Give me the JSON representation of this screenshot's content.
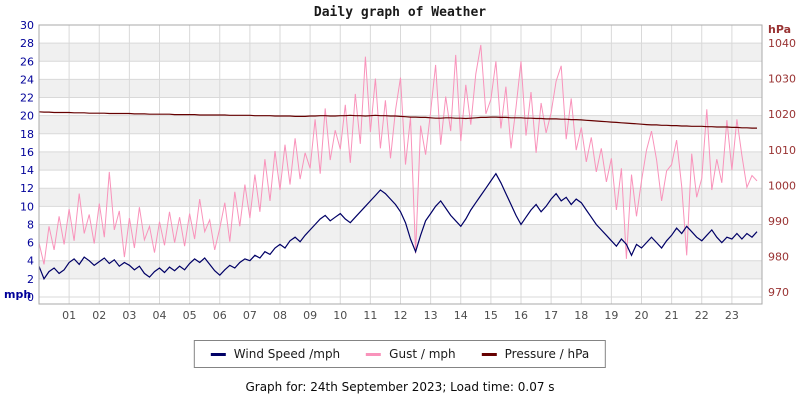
{
  "chart": {
    "title": "Daily graph of Weather",
    "left_axis": {
      "unit": "mph",
      "color": "#000099",
      "ticks": [
        30,
        28,
        26,
        24,
        22,
        20,
        18,
        16,
        14,
        12,
        10,
        8,
        6,
        4,
        2,
        0
      ]
    },
    "right_axis": {
      "unit": "hPa",
      "color": "#993333",
      "ticks": [
        1040,
        1030,
        1020,
        1010,
        1000,
        990,
        980,
        970
      ]
    },
    "x_axis": {
      "color": "#4d4d4d",
      "tick_labels": [
        "01",
        "02",
        "03",
        "04",
        "05",
        "06",
        "07",
        "08",
        "09",
        "10",
        "11",
        "12",
        "13",
        "14",
        "15",
        "16",
        "17",
        "18",
        "19",
        "20",
        "21",
        "22",
        "23"
      ]
    }
  },
  "chart_data": {
    "type": "line",
    "title": "Daily graph of Weather",
    "x_unit": "hour of day",
    "x_range": [
      0,
      24
    ],
    "interval_minutes": 10,
    "left_ylim": [
      0,
      30
    ],
    "right_ylim": [
      970,
      1040
    ],
    "right_axis_plot_range": [
      968.6,
      1045.1
    ],
    "grid": "on",
    "band_fill_alternate": [
      "#ffffff",
      "#f0f0f0"
    ],
    "gridline_color": "#d9d9d9",
    "border_color": "#aaaaaa",
    "legend_position": "bottom",
    "series": [
      {
        "name": "Wind Speed /mph",
        "axis": "left",
        "color": "#000066",
        "values": [
          3.4,
          2.0,
          2.8,
          3.2,
          2.6,
          3.0,
          3.8,
          4.2,
          3.6,
          4.4,
          4.0,
          3.5,
          3.9,
          4.3,
          3.7,
          4.1,
          3.4,
          3.8,
          3.5,
          3.0,
          3.4,
          2.6,
          2.2,
          2.8,
          3.2,
          2.7,
          3.3,
          2.9,
          3.4,
          3.0,
          3.7,
          4.2,
          3.8,
          4.3,
          3.6,
          2.9,
          2.4,
          3.0,
          3.5,
          3.2,
          3.8,
          4.2,
          4.0,
          4.6,
          4.3,
          5.0,
          4.7,
          5.4,
          5.8,
          5.4,
          6.2,
          6.6,
          6.1,
          6.8,
          7.4,
          8.0,
          8.6,
          9.0,
          8.4,
          8.8,
          9.2,
          8.6,
          8.2,
          8.8,
          9.4,
          10.0,
          10.6,
          11.2,
          11.8,
          11.4,
          10.8,
          10.2,
          9.4,
          8.2,
          6.4,
          5.0,
          6.8,
          8.4,
          9.2,
          10.0,
          10.6,
          9.8,
          9.0,
          8.4,
          7.8,
          8.6,
          9.6,
          10.4,
          11.2,
          12.0,
          12.8,
          13.6,
          12.6,
          11.4,
          10.2,
          9.0,
          8.0,
          8.8,
          9.6,
          10.2,
          9.4,
          10.0,
          10.8,
          11.4,
          10.6,
          11.0,
          10.2,
          10.8,
          10.4,
          9.6,
          8.8,
          8.0,
          7.4,
          6.8,
          6.2,
          5.6,
          6.4,
          5.8,
          4.6,
          5.8,
          5.4,
          6.0,
          6.6,
          6.0,
          5.4,
          6.2,
          6.8,
          7.6,
          7.0,
          7.8,
          7.2,
          6.6,
          6.2,
          6.8,
          7.4,
          6.6,
          6.0,
          6.6,
          6.4,
          7.0,
          6.4,
          7.0,
          6.6,
          7.2
        ]
      },
      {
        "name": "Gust / mph",
        "axis": "left",
        "color": "#f993bb",
        "values": [
          6.0,
          3.6,
          7.8,
          5.2,
          8.9,
          5.8,
          9.7,
          6.2,
          11.4,
          7.0,
          9.1,
          5.9,
          10.3,
          6.6,
          13.8,
          7.4,
          9.5,
          4.4,
          8.7,
          5.4,
          9.9,
          6.3,
          7.8,
          4.9,
          8.3,
          5.7,
          9.4,
          6.0,
          8.8,
          5.6,
          9.2,
          6.4,
          10.8,
          7.2,
          8.5,
          5.2,
          7.6,
          10.4,
          6.1,
          11.6,
          7.8,
          12.4,
          8.7,
          13.5,
          9.4,
          15.2,
          10.6,
          16.1,
          11.8,
          16.8,
          12.4,
          17.5,
          13.0,
          15.9,
          14.2,
          19.6,
          13.6,
          20.8,
          15.1,
          18.4,
          16.3,
          21.2,
          14.8,
          22.4,
          16.9,
          26.5,
          18.2,
          24.1,
          16.4,
          21.7,
          15.3,
          20.6,
          24.2,
          14.6,
          19.8,
          4.8,
          18.9,
          15.7,
          20.4,
          25.6,
          16.8,
          22.1,
          18.3,
          26.7,
          17.2,
          23.4,
          19.0,
          24.6,
          27.8,
          20.2,
          21.8,
          26.0,
          18.6,
          23.2,
          16.4,
          20.9,
          26.0,
          17.8,
          22.6,
          15.9,
          21.4,
          18.1,
          20.3,
          23.8,
          25.5,
          17.4,
          21.9,
          16.2,
          18.7,
          14.9,
          17.6,
          13.8,
          16.4,
          12.7,
          15.3,
          9.6,
          14.2,
          4.2,
          13.5,
          8.9,
          12.8,
          16.2,
          18.3,
          15.1,
          10.6,
          13.9,
          14.6,
          17.3,
          12.2,
          4.6,
          15.8,
          11.0,
          13.1,
          20.7,
          11.8,
          15.2,
          12.6,
          19.5,
          14.0,
          19.6,
          15.6,
          12.1,
          13.4,
          12.8
        ]
      },
      {
        "name": "Pressure / hPa",
        "axis": "right",
        "color": "#660000",
        "values": [
          1020.7,
          1020.6,
          1020.6,
          1020.5,
          1020.5,
          1020.5,
          1020.5,
          1020.4,
          1020.4,
          1020.4,
          1020.3,
          1020.3,
          1020.3,
          1020.3,
          1020.2,
          1020.2,
          1020.2,
          1020.2,
          1020.2,
          1020.1,
          1020.1,
          1020.1,
          1020.0,
          1020.0,
          1020.0,
          1020.0,
          1020.0,
          1019.9,
          1019.9,
          1019.9,
          1019.9,
          1019.9,
          1019.8,
          1019.8,
          1019.8,
          1019.8,
          1019.8,
          1019.8,
          1019.7,
          1019.7,
          1019.7,
          1019.7,
          1019.7,
          1019.6,
          1019.6,
          1019.6,
          1019.6,
          1019.5,
          1019.5,
          1019.5,
          1019.5,
          1019.4,
          1019.4,
          1019.4,
          1019.5,
          1019.5,
          1019.6,
          1019.6,
          1019.5,
          1019.5,
          1019.6,
          1019.6,
          1019.7,
          1019.6,
          1019.6,
          1019.5,
          1019.6,
          1019.7,
          1019.6,
          1019.6,
          1019.5,
          1019.5,
          1019.4,
          1019.3,
          1019.2,
          1019.2,
          1019.1,
          1019.1,
          1019.0,
          1018.9,
          1018.9,
          1019.0,
          1019.0,
          1018.9,
          1018.9,
          1018.8,
          1018.9,
          1019.0,
          1019.1,
          1019.1,
          1019.2,
          1019.2,
          1019.1,
          1019.1,
          1019.0,
          1019.0,
          1019.0,
          1018.9,
          1018.9,
          1018.8,
          1018.8,
          1018.7,
          1018.7,
          1018.7,
          1018.6,
          1018.6,
          1018.5,
          1018.5,
          1018.4,
          1018.3,
          1018.2,
          1018.1,
          1018.0,
          1017.9,
          1017.8,
          1017.7,
          1017.6,
          1017.5,
          1017.4,
          1017.3,
          1017.2,
          1017.1,
          1017.0,
          1017.0,
          1016.9,
          1016.9,
          1016.8,
          1016.8,
          1016.7,
          1016.7,
          1016.6,
          1016.6,
          1016.6,
          1016.5,
          1016.5,
          1016.4,
          1016.4,
          1016.4,
          1016.3,
          1016.3,
          1016.2,
          1016.2,
          1016.1,
          1016.1
        ]
      }
    ]
  },
  "legend": {
    "items": [
      {
        "label": "Wind Speed /mph",
        "color": "#000066"
      },
      {
        "label": "Gust / mph",
        "color": "#f993bb"
      },
      {
        "label": "Pressure / hPa",
        "color": "#660000"
      }
    ]
  },
  "footer": {
    "text": "Graph for: 24th September 2023; Load time: 0.07 s"
  }
}
